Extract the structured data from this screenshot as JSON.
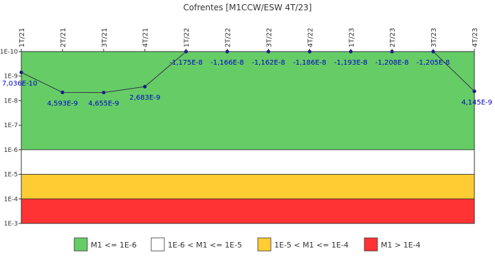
{
  "chart_data": {
    "type": "line",
    "title": "Cofrentes [M1CCW/ESW 4T/23]",
    "xlabel": "",
    "ylabel": "",
    "y_scale": "log",
    "y_inverted": true,
    "ylim": [
      1e-10,
      0.001
    ],
    "y_ticks": [
      "1E-10",
      "1E-9",
      "1E-8",
      "1E-7",
      "1E-6",
      "1E-5",
      "1E-4",
      "1E-3"
    ],
    "categories": [
      "1T/21",
      "2T/21",
      "3T/21",
      "4T/21",
      "1T/22",
      "2T/22",
      "3T/22",
      "4T/22",
      "1T/23",
      "2T/23",
      "3T/23",
      "4T/23"
    ],
    "series": [
      {
        "values": [
          7.036e-10,
          4.593e-09,
          4.655e-09,
          2.683e-09,
          -1.175e-08,
          -1.166e-08,
          -1.162e-08,
          -1.186e-08,
          -1.193e-08,
          -1.208e-08,
          -1.205e-08,
          4.145e-09
        ],
        "labels": [
          "7,036E-10",
          "4,593E-9",
          "4,655E-9",
          "2,683E-9",
          "-1,175E-8",
          "-1,166E-8",
          "-1,162E-8",
          "-1,186E-8",
          "-1,193E-8",
          "-1,208E-8",
          "-1,205E-8",
          "4,145E-9"
        ],
        "color": "#1a1a8c"
      }
    ],
    "bands": [
      {
        "from": 1e-10,
        "to": 1e-06,
        "color": "#66cc66",
        "legend": "M1 <= 1E-6"
      },
      {
        "from": 1e-06,
        "to": 1e-05,
        "color": "#ffffff",
        "legend": "1E-6 < M1 <= 1E-5"
      },
      {
        "from": 1e-05,
        "to": 0.0001,
        "color": "#ffcc33",
        "legend": "1E-5 < M1 <= 1E-4"
      },
      {
        "from": 0.0001,
        "to": 0.001,
        "color": "#ff3333",
        "legend": "M1 > 1E-4"
      }
    ],
    "legend_position": "bottom",
    "label_color": "#0000cc",
    "grid": false
  }
}
